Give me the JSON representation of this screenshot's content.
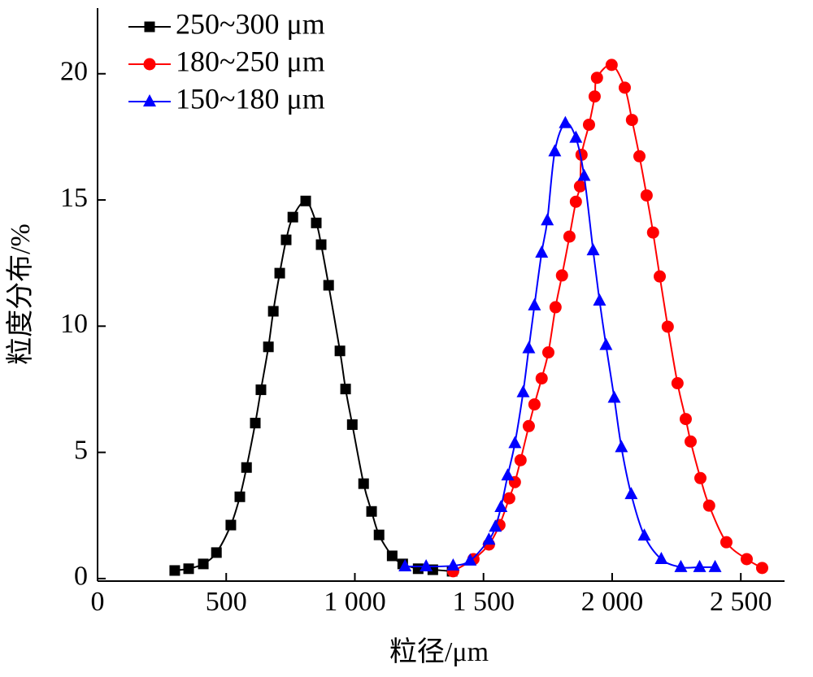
{
  "chart_data": {
    "type": "line",
    "xlabel": "粒径/μm",
    "ylabel": "粒度分布/%",
    "xlim": [
      0,
      2670
    ],
    "ylim": [
      -0.1,
      22.6
    ],
    "xticks": [
      0,
      500,
      {
        "value": 1000,
        "label": "1 000"
      },
      {
        "value": 1500,
        "label": "1 500"
      },
      {
        "value": 2000,
        "label": "2 000"
      },
      {
        "value": 2500,
        "label": "2 500"
      }
    ],
    "yticks": [
      0,
      5,
      10,
      15,
      20
    ],
    "legend": "upper left",
    "series": [
      {
        "name": "250~300 μm",
        "color": "#000000",
        "marker": "square",
        "x": [
          300,
          354,
          411,
          462,
          518,
          553,
          579,
          613,
          635,
          664,
          683,
          708,
          733,
          759,
          809,
          850,
          869,
          898,
          942,
          964,
          990,
          1034,
          1065,
          1094,
          1145,
          1186,
          1246,
          1303,
          1378
        ],
        "values": [
          0.32,
          0.39,
          0.58,
          1.03,
          2.12,
          3.24,
          4.4,
          6.16,
          7.48,
          9.18,
          10.59,
          12.1,
          13.42,
          14.32,
          14.96,
          14.09,
          13.23,
          11.62,
          9.02,
          7.51,
          6.1,
          3.76,
          2.66,
          1.73,
          0.9,
          0.58,
          0.39,
          0.35,
          0.29
        ]
      },
      {
        "name": "180~250 μm",
        "color": "#ff0000",
        "marker": "circle",
        "x": [
          1382,
          1461,
          1521,
          1562,
          1600,
          1622,
          1644,
          1676,
          1698,
          1726,
          1752,
          1780,
          1805,
          1834,
          1859,
          1875,
          1881,
          1910,
          1932,
          1941,
          1998,
          2049,
          2077,
          2106,
          2134,
          2159,
          2185,
          2216,
          2254,
          2286,
          2305,
          2343,
          2377,
          2444,
          2523,
          2583
        ],
        "values": [
          0.29,
          0.77,
          1.35,
          2.12,
          3.18,
          3.82,
          4.69,
          6.04,
          6.9,
          7.93,
          8.96,
          10.75,
          12.01,
          13.55,
          14.93,
          15.54,
          16.79,
          17.98,
          19.1,
          19.84,
          20.35,
          19.45,
          18.17,
          16.73,
          15.18,
          13.71,
          11.97,
          9.98,
          7.74,
          6.32,
          5.43,
          3.98,
          2.89,
          1.44,
          0.77,
          0.42
        ]
      },
      {
        "name": "150~180 μm",
        "color": "#0000ff",
        "marker": "triangle",
        "x": [
          1195,
          1277,
          1382,
          1448,
          1521,
          1546,
          1568,
          1594,
          1622,
          1654,
          1676,
          1698,
          1726,
          1748,
          1777,
          1818,
          1859,
          1891,
          1926,
          1951,
          1976,
          2008,
          2036,
          2074,
          2125,
          2191,
          2267,
          2340,
          2400
        ],
        "values": [
          0.48,
          0.48,
          0.51,
          0.71,
          1.54,
          2.05,
          2.83,
          4.08,
          5.36,
          7.38,
          9.12,
          10.82,
          12.91,
          14.19,
          16.92,
          18.04,
          17.46,
          15.95,
          13.0,
          11.01,
          9.25,
          7.16,
          5.2,
          3.34,
          1.7,
          0.77,
          0.45,
          0.45,
          0.45
        ]
      }
    ]
  }
}
